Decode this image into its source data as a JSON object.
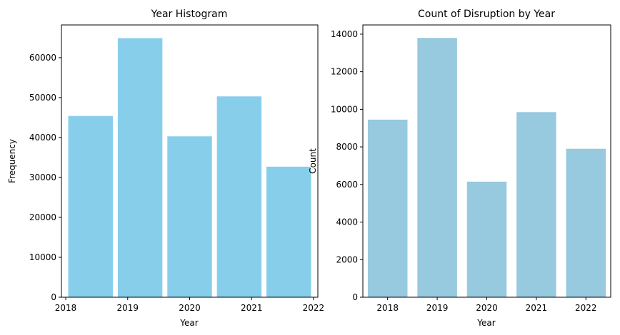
{
  "chart_data": [
    {
      "type": "bar",
      "title": "Year Histogram",
      "xlabel": "Year",
      "ylabel": "Frequency",
      "x_ticks": [
        "2018",
        "2019",
        "2020",
        "2021",
        "2022"
      ],
      "y_ticks": [
        "0",
        "10000",
        "20000",
        "30000",
        "40000",
        "50000",
        "60000"
      ],
      "xlim": [
        2017.93,
        2022.07
      ],
      "ylim": [
        0,
        68200
      ],
      "bins": [
        {
          "start": 2018.04,
          "end": 2018.76,
          "value": 45400
        },
        {
          "start": 2018.84,
          "end": 2019.56,
          "value": 64900
        },
        {
          "start": 2019.64,
          "end": 2020.36,
          "value": 40300
        },
        {
          "start": 2020.44,
          "end": 2021.16,
          "value": 50300
        },
        {
          "start": 2021.24,
          "end": 2021.96,
          "value": 32700
        }
      ],
      "color": "#87CEEB",
      "grid": false,
      "legend": false
    },
    {
      "type": "bar",
      "title": "Count of Disruption by Year",
      "xlabel": "Year",
      "ylabel": "Count",
      "categories": [
        "2018",
        "2019",
        "2020",
        "2021",
        "2022"
      ],
      "values": [
        9450,
        13800,
        6150,
        9850,
        7900
      ],
      "y_ticks": [
        "0",
        "2000",
        "4000",
        "6000",
        "8000",
        "10000",
        "12000",
        "14000"
      ],
      "ylim": [
        0,
        14490
      ],
      "color": "#97C9DF",
      "grid": false,
      "legend": false
    }
  ]
}
